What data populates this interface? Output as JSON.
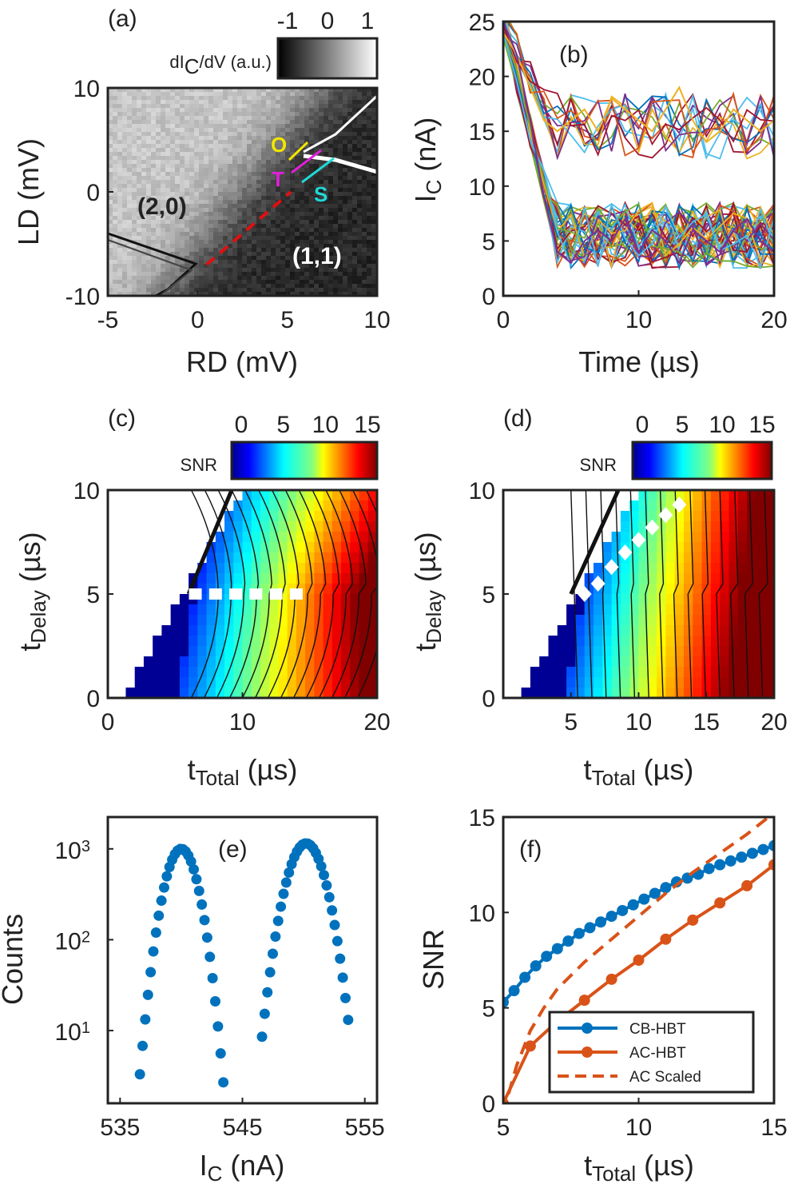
{
  "chart_data": [
    {
      "panel": "(a)",
      "type": "heatmap",
      "xlabel": "RD (mV)",
      "ylabel": "LD (mV)",
      "xlim": [
        -5,
        10
      ],
      "ylim": [
        -10,
        10
      ],
      "xticks": [
        "-5",
        "0",
        "5",
        "10"
      ],
      "yticks": [
        "-10",
        "0",
        "10"
      ],
      "colorbar": {
        "label": "dI",
        "label_sub": "C",
        "label_rest": "/dV (a.u.)",
        "ticks": [
          "-1",
          "0",
          "1"
        ],
        "range": [
          -1,
          1
        ],
        "colormap": "gray"
      },
      "annotations": [
        {
          "text": "(2,0)",
          "color": "#111111"
        },
        {
          "text": "(1,1)",
          "color": "#ffffff"
        },
        {
          "text": "O",
          "color": "#f2e600"
        },
        {
          "text": "T",
          "color": "#e020d8"
        },
        {
          "text": "S",
          "color": "#20d8d8"
        }
      ],
      "dashed_line": {
        "color": "#e01010",
        "from": [
          0.5,
          -7
        ],
        "to": [
          5.2,
          0
        ]
      }
    },
    {
      "panel": "(b)",
      "type": "line",
      "xlabel": "Time (µs)",
      "ylabel": "I",
      "ylabel_sub": "C",
      "ylabel_rest": " (nA)",
      "xlim": [
        0,
        20
      ],
      "ylim": [
        0,
        25
      ],
      "xticks": [
        "0",
        "10",
        "20"
      ],
      "yticks": [
        "0",
        "5",
        "10",
        "15",
        "20",
        "25"
      ],
      "description": "many overlaid single-shot current traces; high state ~16 nA, low state ~5 nA after 5 µs",
      "sample_series": [
        {
          "name": "high",
          "values": [
            24,
            22,
            19,
            16,
            15,
            16,
            17,
            15,
            18,
            17,
            16,
            15,
            17,
            19,
            16,
            14,
            15,
            17,
            16,
            15,
            16
          ]
        },
        {
          "name": "low",
          "values": [
            25,
            22,
            16,
            9,
            4,
            3,
            5,
            6,
            5,
            7,
            4,
            6,
            5,
            3,
            6,
            5,
            4,
            6,
            7,
            5,
            4
          ]
        }
      ]
    },
    {
      "panel": "(c)",
      "type": "heatmap",
      "xlabel": "t",
      "xlabel_sub": "Total",
      "xlabel_rest": " (µs)",
      "ylabel": "t",
      "ylabel_sub": "Delay",
      "ylabel_rest": " (µs)",
      "xlim": [
        0,
        20
      ],
      "ylim": [
        0,
        10
      ],
      "xticks": [
        "0",
        "10",
        "20"
      ],
      "yticks": [
        "0",
        "5",
        "10"
      ],
      "colorbar": {
        "label": "SNR",
        "ticks": [
          "0",
          "5",
          "10",
          "15"
        ],
        "range": [
          0,
          15
        ],
        "colormap": "jet"
      },
      "optimal_path": {
        "style": "white squares",
        "x": [
          6.5,
          8,
          9.5,
          11,
          12.5,
          14
        ],
        "y": [
          5,
          5,
          5,
          5,
          5,
          5
        ]
      }
    },
    {
      "panel": "(d)",
      "type": "heatmap",
      "xlabel": "t",
      "xlabel_sub": "Total",
      "xlabel_rest": " (µs)",
      "ylabel": "t",
      "ylabel_sub": "Delay",
      "ylabel_rest": " (µs)",
      "xlim": [
        0,
        20
      ],
      "ylim": [
        0,
        10
      ],
      "xticks": [
        "5",
        "10",
        "15",
        "20"
      ],
      "yticks": [
        "0",
        "5",
        "10"
      ],
      "colorbar": {
        "label": "SNR",
        "ticks": [
          "0",
          "5",
          "10",
          "15"
        ],
        "range": [
          0,
          15
        ],
        "colormap": "jet"
      },
      "optimal_path": {
        "style": "white diamonds",
        "x": [
          6,
          7,
          8,
          9,
          10,
          11,
          12,
          13
        ],
        "y": [
          5,
          5.5,
          6.3,
          7,
          7.6,
          8.2,
          8.8,
          9.3
        ]
      }
    },
    {
      "panel": "(e)",
      "type": "scatter",
      "xlabel": "I",
      "xlabel_sub": "C",
      "xlabel_rest": " (nA)",
      "ylabel": "Counts",
      "xlim": [
        534,
        556
      ],
      "ylim_log10": [
        0.2,
        3.35
      ],
      "xticks": [
        "535",
        "545",
        "555"
      ],
      "yticks": [
        {
          "base": "10",
          "exp": "1"
        },
        {
          "base": "10",
          "exp": "2"
        },
        {
          "base": "10",
          "exp": "3"
        }
      ],
      "series": [
        {
          "name": "low peak",
          "center": 540,
          "sigma": 1.0,
          "peak": 1000
        },
        {
          "name": "high peak",
          "center": 550.2,
          "sigma": 1.15,
          "peak": 1150
        }
      ]
    },
    {
      "panel": "(f)",
      "type": "line",
      "xlabel": "t",
      "xlabel_sub": "Total",
      "xlabel_rest": " (µs)",
      "ylabel": "SNR",
      "xlim": [
        5,
        15
      ],
      "ylim": [
        0,
        15
      ],
      "xticks": [
        "5",
        "10",
        "15"
      ],
      "yticks": [
        "0",
        "5",
        "10",
        "15"
      ],
      "legend_position": "bottom-right",
      "series": [
        {
          "name": "CB-HBT",
          "color": "#0072bd",
          "style": "solid-markers",
          "x": [
            5,
            5.4,
            5.8,
            6.2,
            6.6,
            7,
            7.4,
            7.8,
            8.2,
            8.6,
            9,
            9.4,
            9.8,
            10.2,
            10.6,
            11,
            11.4,
            11.8,
            12.2,
            12.6,
            13,
            13.4,
            13.8,
            14.2,
            14.6,
            15
          ],
          "values": [
            5.3,
            5.9,
            6.6,
            7.2,
            7.7,
            8.1,
            8.5,
            8.9,
            9.2,
            9.5,
            9.8,
            10.1,
            10.4,
            10.7,
            11.0,
            11.3,
            11.6,
            11.8,
            12.0,
            12.3,
            12.5,
            12.7,
            12.9,
            13.1,
            13.3,
            13.5
          ]
        },
        {
          "name": "AC-HBT",
          "color": "#d95319",
          "style": "solid-markers",
          "x": [
            5,
            6,
            7,
            8,
            9,
            10,
            11,
            12,
            13,
            14,
            15
          ],
          "values": [
            0,
            3.0,
            4.3,
            5.4,
            6.5,
            7.5,
            8.6,
            9.6,
            10.5,
            11.4,
            12.5
          ]
        },
        {
          "name": "AC Scaled",
          "color": "#d95319",
          "style": "dashed",
          "x": [
            5.2,
            5.5,
            6,
            6.5,
            7,
            8,
            9,
            10,
            11,
            12,
            13,
            14,
            14.8
          ],
          "values": [
            0.5,
            2.0,
            3.8,
            5.0,
            6.0,
            7.4,
            8.6,
            9.8,
            11.0,
            12.1,
            13.1,
            14.1,
            15
          ]
        }
      ]
    }
  ]
}
